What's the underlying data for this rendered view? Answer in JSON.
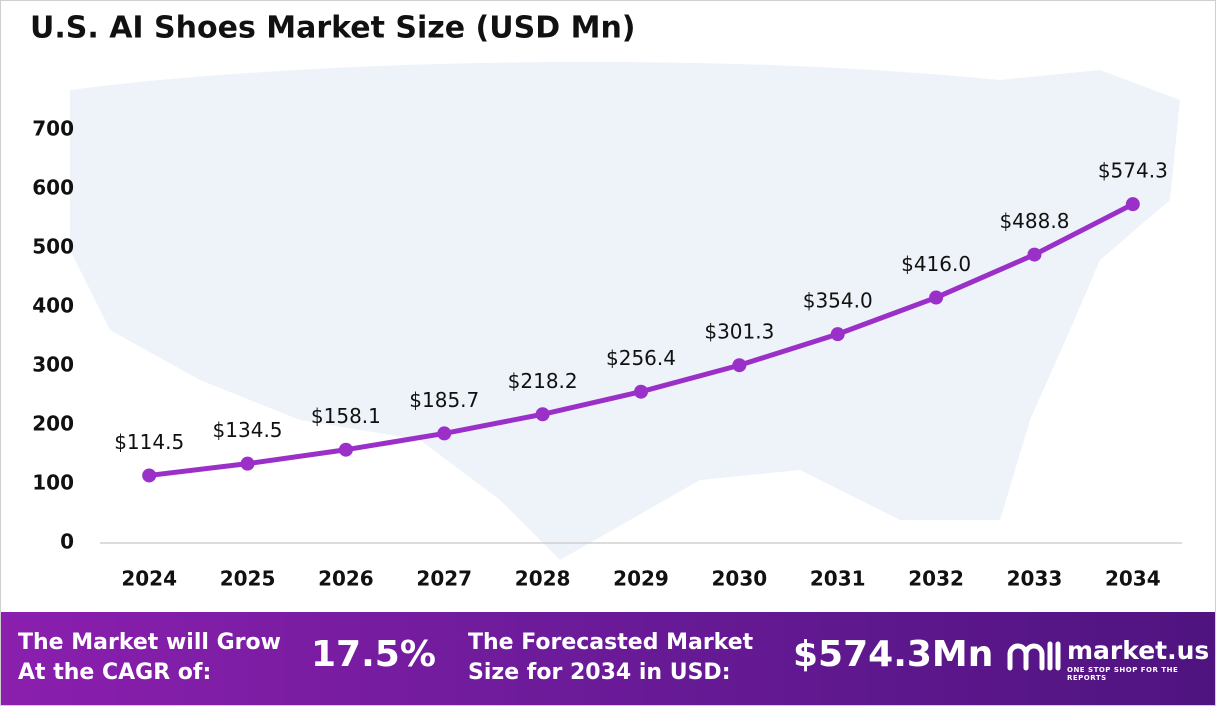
{
  "chart_data": {
    "type": "line",
    "title": "U.S. AI Shoes Market Size (USD Mn)",
    "categories": [
      "2024",
      "2025",
      "2026",
      "2027",
      "2028",
      "2029",
      "2030",
      "2031",
      "2032",
      "2033",
      "2034"
    ],
    "values": [
      114.5,
      134.5,
      158.1,
      185.7,
      218.2,
      256.4,
      301.3,
      354.0,
      416.0,
      488.8,
      574.3
    ],
    "value_labels": [
      "$114.5",
      "$134.5",
      "$158.1",
      "$185.7",
      "$218.2",
      "$256.4",
      "$301.3",
      "$354.0",
      "$416.0",
      "$488.8",
      "$574.3"
    ],
    "color": "#9b30c8",
    "ylim": [
      0,
      700
    ],
    "yticks": [
      0,
      100,
      200,
      300,
      400,
      500,
      600,
      700
    ],
    "grid": false
  },
  "footer": {
    "cagr_label_lines": [
      "The Market will Grow",
      "At the CAGR of:"
    ],
    "cagr_value": "17.5%",
    "forecast_label_lines": [
      "The Forecasted Market",
      "Size for 2034 in USD:"
    ],
    "forecast_value": "$574.3Mn",
    "brand": "market.us",
    "tagline": "ONE STOP SHOP FOR THE REPORTS"
  }
}
